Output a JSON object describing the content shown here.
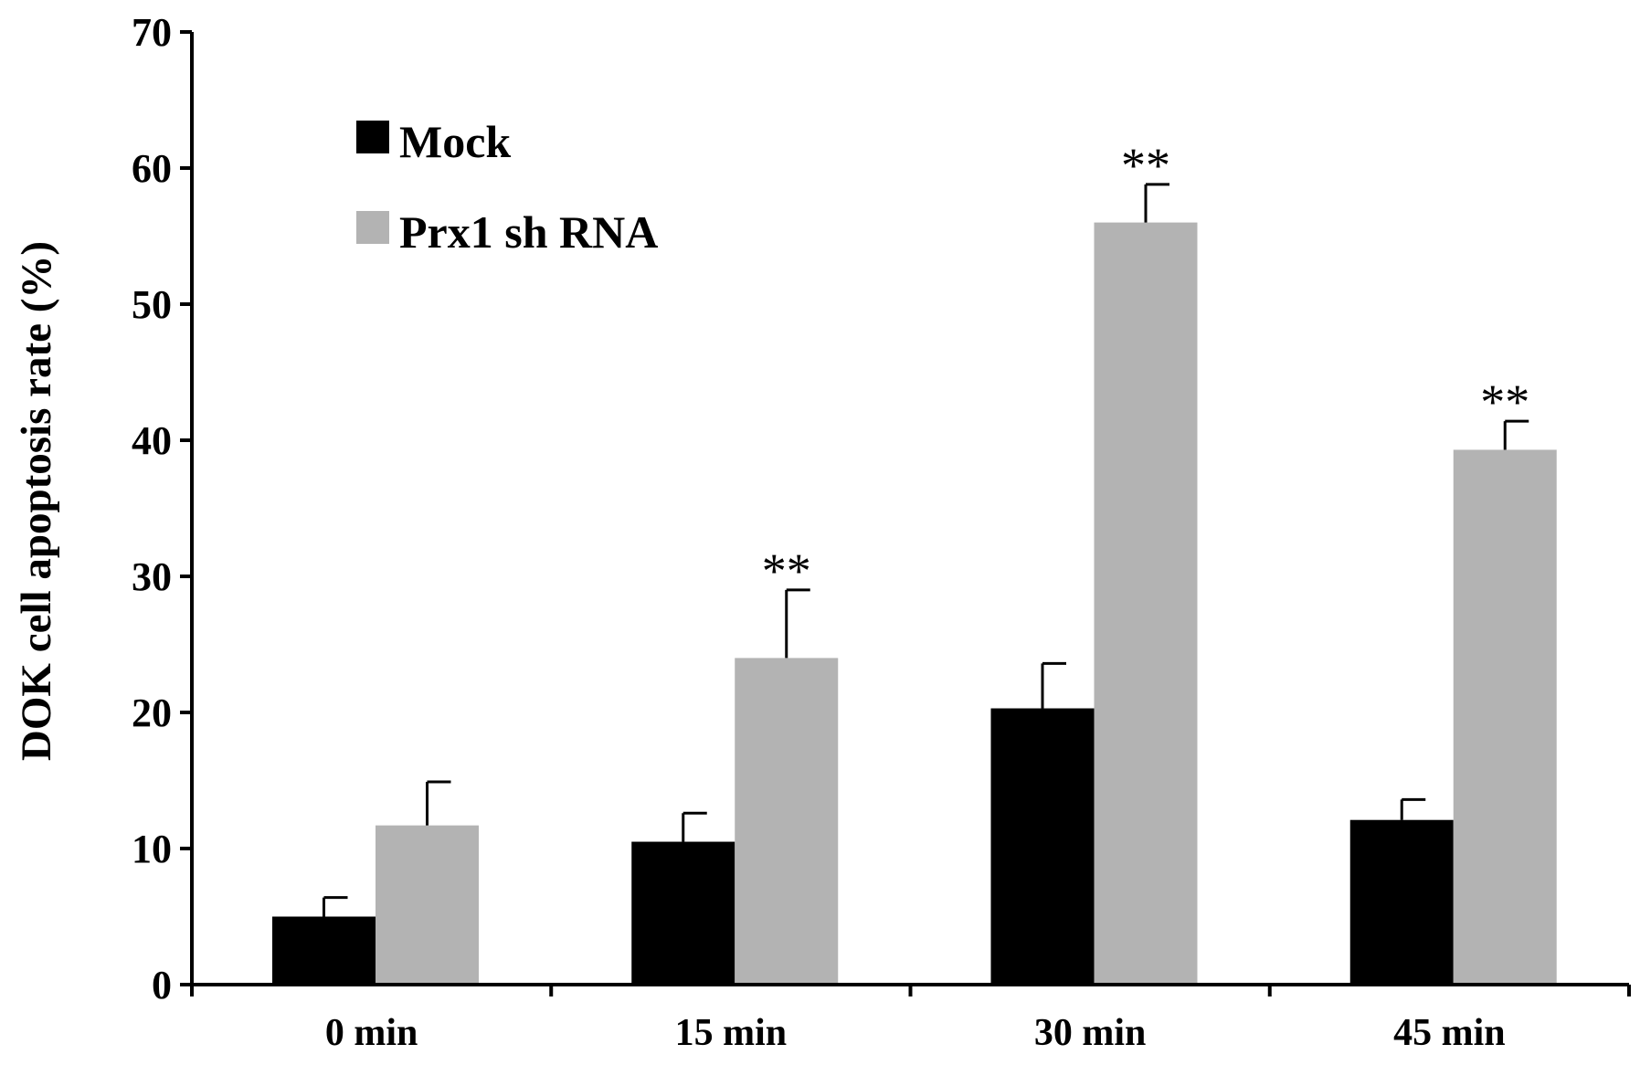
{
  "chart_data": {
    "type": "bar",
    "title": "",
    "xlabel": "",
    "ylabel": "DOK cell apoptosis rate (%)",
    "ylim": [
      0,
      70
    ],
    "yticks": [
      0,
      10,
      20,
      30,
      40,
      50,
      60,
      70
    ],
    "categories": [
      "0 min",
      "15 min",
      "30 min",
      "45 min"
    ],
    "series": [
      {
        "name": "Mock",
        "color": "#000000",
        "values": [
          5.0,
          10.5,
          20.3,
          12.1
        ],
        "errors": [
          1.4,
          2.1,
          3.3,
          1.5
        ]
      },
      {
        "name": "Prx1 sh RNA",
        "color": "#b3b3b3",
        "values": [
          11.7,
          24.0,
          56.0,
          39.3
        ],
        "errors": [
          3.2,
          5.0,
          2.8,
          2.1
        ]
      }
    ],
    "annotations": [
      {
        "category": "15 min",
        "series": "Prx1 sh RNA",
        "text": "**"
      },
      {
        "category": "30 min",
        "series": "Prx1 sh RNA",
        "text": "**"
      },
      {
        "category": "45 min",
        "series": "Prx1 sh RNA",
        "text": "**"
      }
    ],
    "legend": {
      "position": "top-left"
    },
    "grid": false
  }
}
